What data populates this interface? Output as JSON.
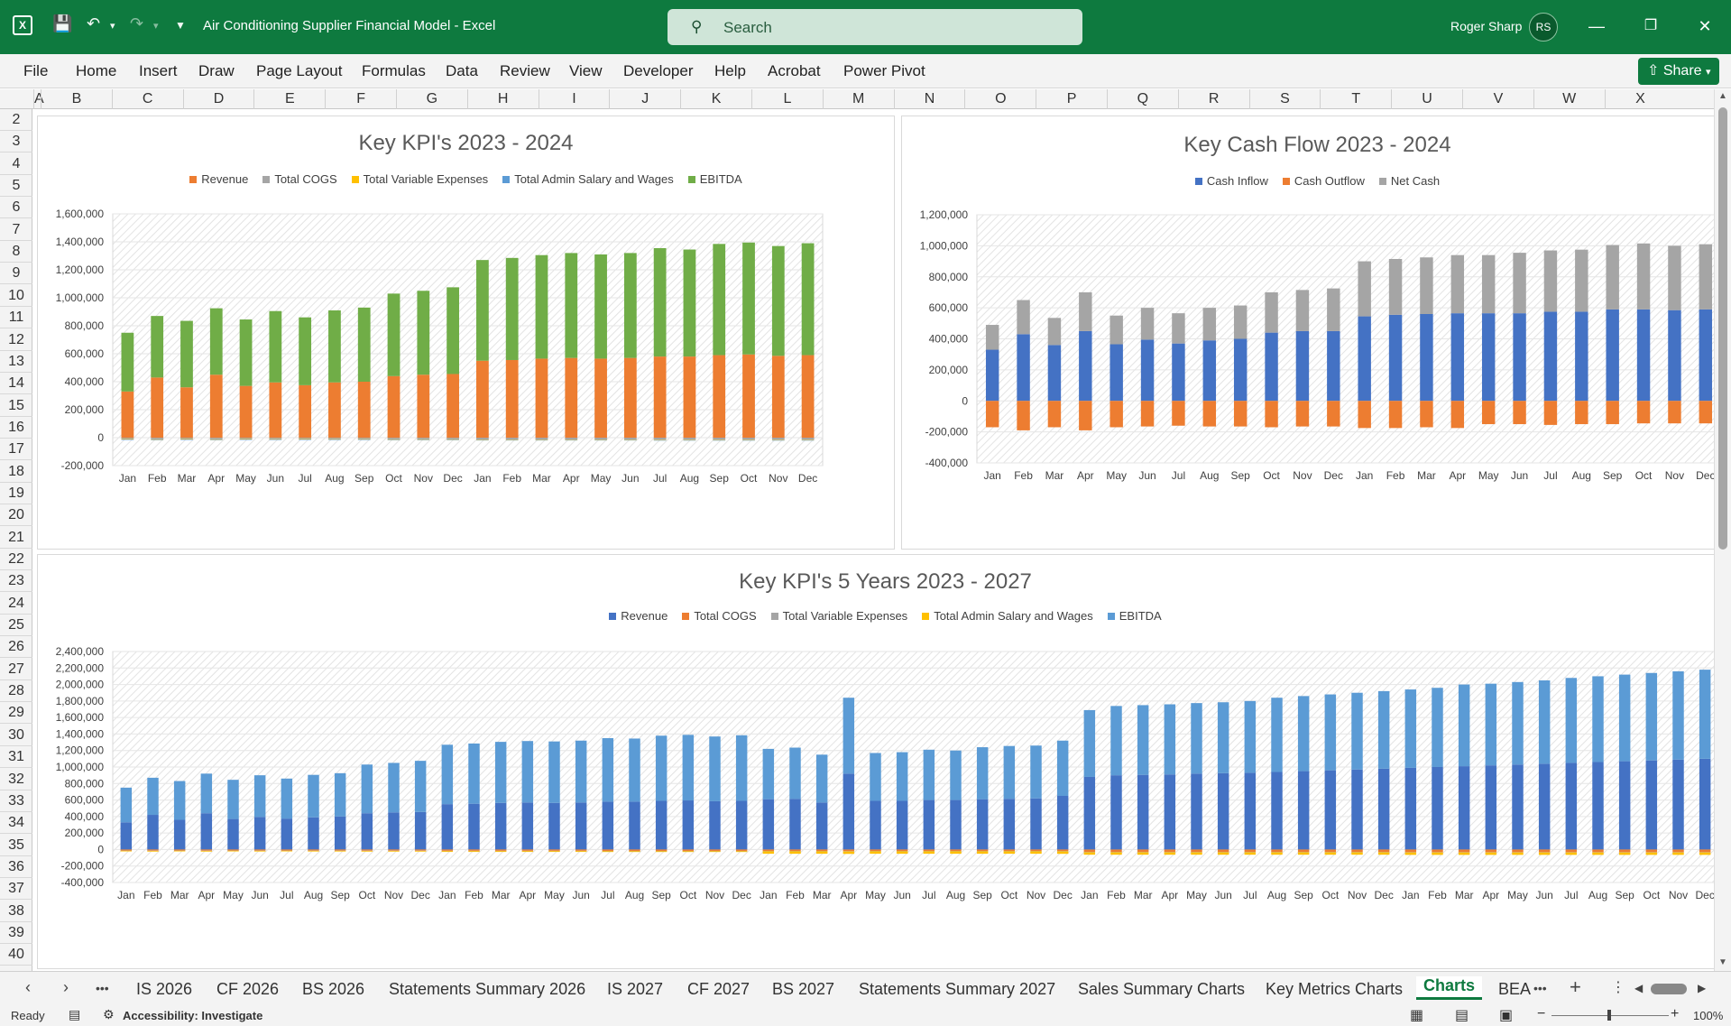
{
  "titlebar": {
    "doc_title": "Air Conditioning Supplier Financial Model  -  Excel",
    "search_placeholder": "Search",
    "user_name": "Roger Sharp",
    "user_initials": "RS"
  },
  "menu": [
    "File",
    "Home",
    "Insert",
    "Draw",
    "Page Layout",
    "Formulas",
    "Data",
    "Review",
    "View",
    "Developer",
    "Help",
    "Acrobat",
    "Power Pivot"
  ],
  "share_label": "Share",
  "columns": [
    "A",
    "B",
    "C",
    "D",
    "E",
    "F",
    "G",
    "H",
    "I",
    "J",
    "K",
    "L",
    "M",
    "N",
    "O",
    "P",
    "Q",
    "R",
    "S",
    "T",
    "U",
    "V",
    "W",
    "X"
  ],
  "rows": [
    "2",
    "3",
    "4",
    "5",
    "6",
    "7",
    "8",
    "9",
    "10",
    "11",
    "12",
    "13",
    "14",
    "15",
    "16",
    "17",
    "18",
    "19",
    "20",
    "21",
    "22",
    "23",
    "24",
    "25",
    "26",
    "27",
    "28",
    "29",
    "30",
    "31",
    "32",
    "33",
    "34",
    "35",
    "36",
    "37",
    "38",
    "39",
    "40"
  ],
  "sheet_tabs": [
    "IS 2026",
    "CF 2026",
    "BS 2026",
    "Statements Summary 2026",
    "IS 2027",
    "CF 2027",
    "BS 2027",
    "Statements Summary 2027",
    "Sales Summary Charts",
    "Key Metrics Charts",
    "Charts",
    "BEA"
  ],
  "active_tab": "Charts",
  "status": {
    "ready": "Ready",
    "accessibility": "Accessibility: Investigate",
    "zoom": "100%"
  },
  "colors": {
    "orange": "#ed7d31",
    "gray": "#a5a5a5",
    "gold": "#ffc000",
    "lightblue": "#5b9bd5",
    "green": "#70ad47",
    "blue": "#4472c4",
    "excel_green": "#0e7a3f"
  },
  "chart_data": [
    {
      "type": "bar",
      "title": "Key KPI's 2023 - 2024",
      "stacked": true,
      "categories": [
        "Jan",
        "Feb",
        "Mar",
        "Apr",
        "May",
        "Jun",
        "Jul",
        "Aug",
        "Sep",
        "Oct",
        "Nov",
        "Dec",
        "Jan",
        "Feb",
        "Mar",
        "Apr",
        "May",
        "Jun",
        "Jul",
        "Aug",
        "Sep",
        "Oct",
        "Nov",
        "Dec"
      ],
      "ylim": [
        -200000,
        1600000
      ],
      "yticks": [
        "1,600,000",
        "1,400,000",
        "1,200,000",
        "1,000,000",
        "800,000",
        "600,000",
        "400,000",
        "200,000",
        "0",
        "-200,000"
      ],
      "series": [
        {
          "name": "Revenue",
          "color": "#ed7d31",
          "values": [
            330000,
            430000,
            360000,
            450000,
            370000,
            395000,
            375000,
            395000,
            400000,
            440000,
            450000,
            455000,
            550000,
            555000,
            565000,
            570000,
            565000,
            570000,
            580000,
            580000,
            590000,
            595000,
            585000,
            590000
          ]
        },
        {
          "name": "Total COGS",
          "color": "#a5a5a5",
          "values": [
            -10000,
            -12000,
            -10000,
            -12000,
            -10000,
            -11000,
            -10000,
            -11000,
            -11000,
            -12000,
            -12000,
            -12000,
            -14000,
            -14000,
            -14000,
            -14000,
            -14000,
            -14000,
            -15000,
            -15000,
            -15000,
            -15000,
            -15000,
            -15000
          ]
        },
        {
          "name": "Total Variable Expenses",
          "color": "#ffc000",
          "values": [
            -3000,
            -3000,
            -3000,
            -3000,
            -3000,
            -3000,
            -3000,
            -3000,
            -3000,
            -3000,
            -3000,
            -3000,
            -3000,
            -3000,
            -3000,
            -3000,
            -3000,
            -3000,
            -3000,
            -3000,
            -3000,
            -3000,
            -3000,
            -3000
          ]
        },
        {
          "name": "Total Admin Salary and Wages",
          "color": "#5b9bd5",
          "values": [
            -2000,
            -2000,
            -2000,
            -2000,
            -2000,
            -2000,
            -2000,
            -2000,
            -2000,
            -2000,
            -2000,
            -2000,
            -2000,
            -2000,
            -2000,
            -2000,
            -2000,
            -2000,
            -2000,
            -2000,
            -2000,
            -2000,
            -2000,
            -2000
          ]
        },
        {
          "name": "EBITDA",
          "color": "#70ad47",
          "values": [
            420000,
            440000,
            475000,
            475000,
            475000,
            510000,
            485000,
            515000,
            530000,
            590000,
            600000,
            620000,
            720000,
            730000,
            740000,
            750000,
            745000,
            750000,
            775000,
            765000,
            795000,
            800000,
            785000,
            800000
          ]
        }
      ]
    },
    {
      "type": "bar",
      "title": "Key Cash Flow 2023 - 2024",
      "stacked": true,
      "categories": [
        "Jan",
        "Feb",
        "Mar",
        "Apr",
        "May",
        "Jun",
        "Jul",
        "Aug",
        "Sep",
        "Oct",
        "Nov",
        "Dec",
        "Jan",
        "Feb",
        "Mar",
        "Apr",
        "May",
        "Jun",
        "Jul",
        "Aug",
        "Sep",
        "Oct",
        "Nov",
        "Dec"
      ],
      "ylim": [
        -400000,
        1200000
      ],
      "yticks": [
        "1,200,000",
        "1,000,000",
        "800,000",
        "600,000",
        "400,000",
        "200,000",
        "0",
        "-200,000",
        "-400,000"
      ],
      "series": [
        {
          "name": "Cash Inflow",
          "color": "#4472c4",
          "values": [
            330000,
            430000,
            360000,
            450000,
            365000,
            395000,
            370000,
            390000,
            400000,
            440000,
            450000,
            450000,
            545000,
            555000,
            560000,
            565000,
            565000,
            565000,
            575000,
            575000,
            590000,
            590000,
            585000,
            590000
          ]
        },
        {
          "name": "Cash Outflow",
          "color": "#ed7d31",
          "values": [
            -170000,
            -190000,
            -170000,
            -190000,
            -170000,
            -165000,
            -160000,
            -165000,
            -165000,
            -170000,
            -165000,
            -165000,
            -175000,
            -175000,
            -170000,
            -175000,
            -150000,
            -150000,
            -155000,
            -150000,
            -150000,
            -145000,
            -145000,
            -145000
          ]
        },
        {
          "name": "Net Cash",
          "color": "#a5a5a5",
          "values": [
            160000,
            220000,
            175000,
            250000,
            185000,
            205000,
            195000,
            210000,
            215000,
            260000,
            265000,
            275000,
            355000,
            360000,
            365000,
            375000,
            375000,
            390000,
            395000,
            400000,
            415000,
            425000,
            415000,
            420000
          ]
        }
      ]
    },
    {
      "type": "bar",
      "title": "Key KPI's 5 Years 2023 - 2027",
      "stacked": true,
      "categories": [
        "Jan",
        "Feb",
        "Mar",
        "Apr",
        "May",
        "Jun",
        "Jul",
        "Aug",
        "Sep",
        "Oct",
        "Nov",
        "Dec",
        "Jan",
        "Feb",
        "Mar",
        "Apr",
        "May",
        "Jun",
        "Jul",
        "Aug",
        "Sep",
        "Oct",
        "Nov",
        "Dec",
        "Jan",
        "Feb",
        "Mar",
        "Apr",
        "May",
        "Jun",
        "Jul",
        "Aug",
        "Sep",
        "Oct",
        "Nov",
        "Dec",
        "Jan",
        "Feb",
        "Mar",
        "Apr",
        "May",
        "Jun",
        "Jul",
        "Aug",
        "Sep",
        "Oct",
        "Nov",
        "Dec",
        "Jan",
        "Feb",
        "Mar",
        "Apr",
        "May",
        "Jun",
        "Jul",
        "Aug",
        "Sep",
        "Oct",
        "Nov",
        "Dec"
      ],
      "ylim": [
        -400000,
        2400000
      ],
      "yticks": [
        "2,400,000",
        "2,200,000",
        "2,000,000",
        "1,800,000",
        "1,600,000",
        "1,400,000",
        "1,200,000",
        "1,000,000",
        "800,000",
        "600,000",
        "400,000",
        "200,000",
        "0",
        "-200,000",
        "-400,000"
      ],
      "series": [
        {
          "name": "Revenue",
          "color": "#4472c4",
          "values": [
            330000,
            420000,
            360000,
            440000,
            370000,
            395000,
            375000,
            390000,
            400000,
            440000,
            450000,
            455000,
            550000,
            555000,
            565000,
            570000,
            565000,
            570000,
            580000,
            580000,
            590000,
            595000,
            585000,
            590000,
            610000,
            615000,
            570000,
            920000,
            590000,
            590000,
            600000,
            600000,
            610000,
            615000,
            620000,
            650000,
            880000,
            900000,
            905000,
            910000,
            920000,
            925000,
            930000,
            940000,
            950000,
            960000,
            970000,
            980000,
            990000,
            1000000,
            1010000,
            1020000,
            1030000,
            1040000,
            1050000,
            1060000,
            1070000,
            1080000,
            1090000,
            1100000
          ]
        },
        {
          "name": "Total COGS",
          "color": "#ed7d31",
          "values": [
            -12000,
            -14000,
            -12000,
            -14000,
            -12000,
            -13000,
            -12000,
            -13000,
            -13000,
            -14000,
            -14000,
            -14000,
            -16000,
            -16000,
            -16000,
            -16000,
            -16000,
            -16000,
            -17000,
            -17000,
            -17000,
            -17000,
            -17000,
            -17000,
            -18000,
            -18000,
            -18000,
            -20000,
            -18000,
            -18000,
            -18000,
            -18000,
            -18000,
            -18000,
            -18000,
            -19000,
            -30000,
            -30000,
            -30000,
            -30000,
            -30000,
            -30000,
            -30000,
            -30000,
            -30000,
            -30000,
            -30000,
            -30000,
            -32000,
            -32000,
            -32000,
            -32000,
            -32000,
            -32000,
            -32000,
            -32000,
            -32000,
            -32000,
            -32000,
            -32000
          ]
        },
        {
          "name": "Total Variable Expenses",
          "color": "#a5a5a5",
          "values": [
            -3000,
            -3000,
            -3000,
            -3000,
            -3000,
            -3000,
            -3000,
            -3000,
            -3000,
            -3000,
            -3000,
            -3000,
            -3000,
            -3000,
            -3000,
            -3000,
            -3000,
            -3000,
            -3000,
            -3000,
            -3000,
            -3000,
            -3000,
            -3000,
            -3000,
            -3000,
            -3000,
            -3000,
            -3000,
            -3000,
            -3000,
            -3000,
            -3000,
            -3000,
            -3000,
            -3000,
            -3000,
            -3000,
            -3000,
            -3000,
            -3000,
            -3000,
            -3000,
            -3000,
            -3000,
            -3000,
            -3000,
            -3000,
            -3000,
            -3000,
            -3000,
            -3000,
            -3000,
            -3000,
            -3000,
            -3000,
            -3000,
            -3000,
            -3000,
            -3000
          ]
        },
        {
          "name": "Total Admin Salary and Wages",
          "color": "#ffc000",
          "values": [
            -8000,
            -8000,
            -8000,
            -8000,
            -8000,
            -8000,
            -8000,
            -8000,
            -8000,
            -8000,
            -8000,
            -8000,
            -10000,
            -10000,
            -10000,
            -10000,
            -10000,
            -10000,
            -10000,
            -10000,
            -10000,
            -10000,
            -10000,
            -10000,
            -30000,
            -30000,
            -30000,
            -30000,
            -30000,
            -30000,
            -30000,
            -30000,
            -30000,
            -30000,
            -30000,
            -30000,
            -30000,
            -30000,
            -30000,
            -30000,
            -30000,
            -30000,
            -30000,
            -30000,
            -30000,
            -30000,
            -30000,
            -30000,
            -30000,
            -30000,
            -30000,
            -30000,
            -30000,
            -30000,
            -30000,
            -30000,
            -30000,
            -30000,
            -30000,
            -30000
          ]
        },
        {
          "name": "EBITDA",
          "color": "#5b9bd5",
          "values": [
            420000,
            450000,
            470000,
            480000,
            475000,
            505000,
            485000,
            515000,
            525000,
            590000,
            600000,
            620000,
            720000,
            730000,
            740000,
            745000,
            745000,
            750000,
            770000,
            765000,
            790000,
            795000,
            785000,
            795000,
            610000,
            620000,
            580000,
            920000,
            580000,
            590000,
            610000,
            600000,
            630000,
            640000,
            640000,
            670000,
            810000,
            840000,
            845000,
            850000,
            855000,
            860000,
            870000,
            900000,
            910000,
            920000,
            930000,
            940000,
            950000,
            960000,
            990000,
            990000,
            1000000,
            1010000,
            1030000,
            1040000,
            1050000,
            1060000,
            1070000,
            1080000
          ]
        }
      ]
    }
  ]
}
